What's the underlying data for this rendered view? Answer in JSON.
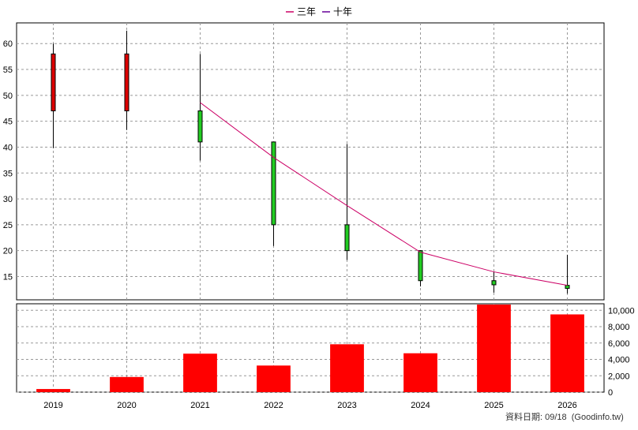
{
  "chart_data": [
    {
      "type": "candlestick",
      "title": "",
      "legend": {
        "placement": "top-center",
        "entries": [
          {
            "name": "三年",
            "color": "#cc0066"
          },
          {
            "name": "十年",
            "color": "#660099"
          }
        ]
      },
      "x": [
        "2019",
        "2020",
        "2021",
        "2022",
        "2023",
        "2024",
        "2025",
        "2026"
      ],
      "ylim": [
        10.5,
        64
      ],
      "yticks": [
        15,
        20,
        25,
        30,
        35,
        40,
        45,
        50,
        55,
        60
      ],
      "grid": true,
      "candles": [
        {
          "x": "2019",
          "open": 47,
          "high": 60,
          "low": 39.8,
          "close": 58
        },
        {
          "x": "2020",
          "open": 47,
          "high": 62.5,
          "low": 43.3,
          "close": 58
        },
        {
          "x": "2021",
          "open": 47,
          "high": 58,
          "low": 37.4,
          "close": 41
        },
        {
          "x": "2022",
          "open": 41,
          "high": 41,
          "low": 20.9,
          "close": 25
        },
        {
          "x": "2023",
          "open": 25,
          "high": 40.6,
          "low": 18.2,
          "close": 20
        },
        {
          "x": "2024",
          "open": 20,
          "high": 20.1,
          "low": 13.1,
          "close": 14.2
        },
        {
          "x": "2025",
          "open": 14.2,
          "high": 15.9,
          "low": 11.9,
          "close": 13.4
        },
        {
          "x": "2026",
          "open": 13.3,
          "high": 19.2,
          "low": 11.7,
          "close": 12.7
        }
      ],
      "colors": {
        "up": "#dd0000",
        "down": "#22cc22"
      },
      "series": [
        {
          "name": "三年",
          "color": "#cc0066",
          "points": [
            [
              "2021",
              48.6
            ],
            [
              "2022",
              38
            ],
            [
              "2023",
              28.7
            ],
            [
              "2024",
              19.7
            ],
            [
              "2025",
              15.9
            ],
            [
              "2026",
              13.3
            ]
          ]
        }
      ]
    },
    {
      "type": "bar",
      "categories": [
        "2019",
        "2020",
        "2021",
        "2022",
        "2023",
        "2024",
        "2025",
        "2026"
      ],
      "values": [
        380,
        1850,
        4700,
        3250,
        5850,
        4750,
        10700,
        9500
      ],
      "ylim": [
        0,
        10800
      ],
      "yticks": [
        0,
        2000,
        4000,
        6000,
        8000,
        10000
      ],
      "ytick_labels": [
        "0",
        "2,000",
        "4,000",
        "6,000",
        "8,000",
        "10,000"
      ],
      "color": "#ff0000",
      "grid": true
    }
  ],
  "footer": {
    "source_text": "資料日期: 09/18  (Goodinfo.tw)"
  }
}
